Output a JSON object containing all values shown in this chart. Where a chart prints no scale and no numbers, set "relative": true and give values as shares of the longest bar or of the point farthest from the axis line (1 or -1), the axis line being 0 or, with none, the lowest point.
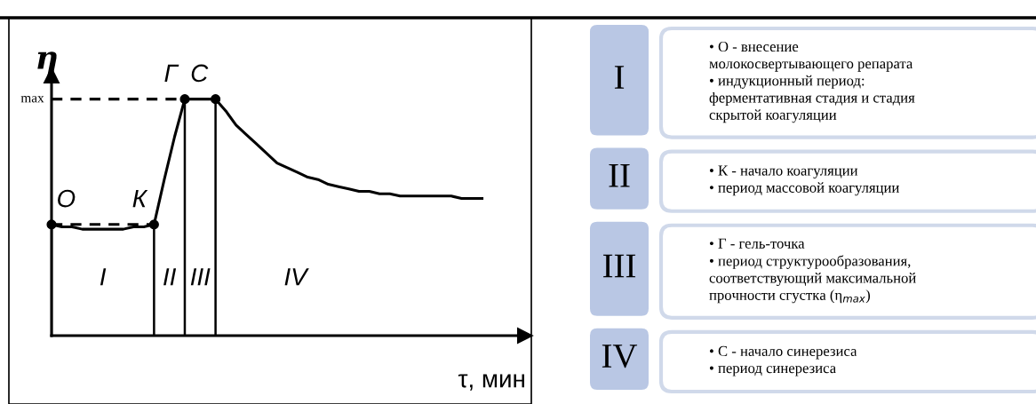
{
  "chart_data": [
    {
      "type": "line",
      "relative": true,
      "xlabel": "τ, мин",
      "ylabel": "η",
      "legend": false,
      "grid": false,
      "categories": [
        null,
        null,
        null,
        null,
        null,
        null,
        null,
        null,
        null,
        null,
        null,
        null,
        null,
        null,
        null,
        null,
        null,
        null,
        null,
        null,
        null,
        null,
        null,
        null,
        null,
        null,
        null,
        null,
        null,
        null,
        null,
        null,
        null,
        null,
        null,
        null,
        null,
        null,
        null,
        null,
        null,
        null,
        null
      ],
      "series": [
        {
          "type": "line",
          "color": "#000000",
          "line_style": "solid",
          "values": [
            0.47,
            0.46,
            0.46,
            0.45,
            0.45,
            0.45,
            0.45,
            0.45,
            0.46,
            0.46,
            0.47,
            0.66,
            0.84,
            1.0,
            1.0,
            1.0,
            1.0,
            0.95,
            0.89,
            0.85,
            0.81,
            0.77,
            0.73,
            0.71,
            0.69,
            0.67,
            0.66,
            0.64,
            0.63,
            0.62,
            0.61,
            0.61,
            0.6,
            0.6,
            0.59,
            0.59,
            0.59,
            0.59,
            0.59,
            0.59,
            0.58,
            0.58,
            0.58
          ]
        }
      ],
      "ref_lines": [
        {
          "axis": "y",
          "value": 1.0,
          "label": null,
          "line_style": "dashed",
          "color": "#000000"
        },
        {
          "axis": "y",
          "value": 0.47,
          "label": null,
          "line_style": "dashed",
          "color": "#000000"
        }
      ],
      "annotations": [
        "max",
        "I",
        "II",
        "III",
        "IV",
        {
          "text": "О",
          "y": 0.47
        },
        {
          "text": "К",
          "y": 0.47
        },
        {
          "text": "Г",
          "y": 1.0
        },
        {
          "text": "С",
          "y": 1.0
        }
      ]
    },
    {
      "type": "other",
      "categories": [
        "I",
        "II",
        "III",
        "IV"
      ],
      "annotations": [
        "• О - внесение\nмолокосвертывающего репарата\n• индукционный период:\nферментативная стадия и стадия\nскрытой коагуляции",
        "• К - начало коагуляции\n• период массовой коагуляции",
        "• Г - гель-точка\n• период структурообразования,\nсоответствующий максимальной\nпрочности сгустка (η$_{max}$)",
        "• С - начало синерезиса\n• период синерезиса"
      ]
    }
  ]
}
